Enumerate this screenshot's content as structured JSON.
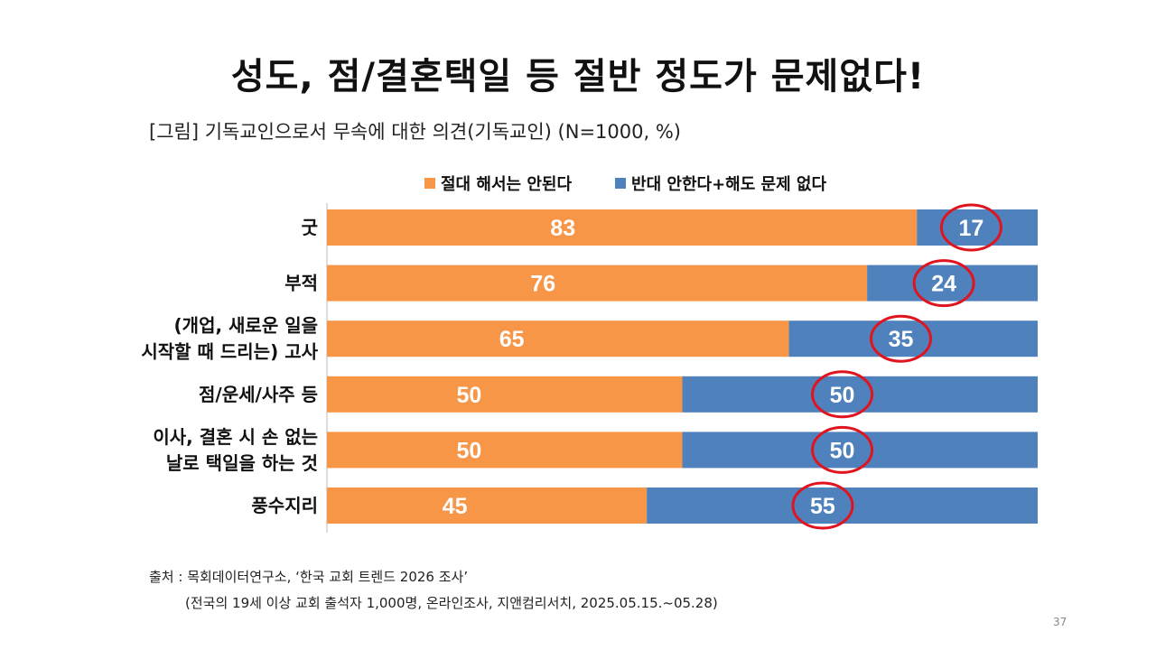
{
  "title": "성도, 점/결혼택일 등 절반 정도가 문제없다!",
  "subtitle": "[그림] 기독교인으로서 무속에 대한 의견(기독교인) (N=1000, %)",
  "source_line1": "출처 : 목회데이터연구소, ‘한국 교회 트렌드 2026 조사’",
  "source_line2": "(전국의 19세 이상 교회 출석자 1,000명, 온라인조사, 지앤컴리서치, 2025.05.15.~05.28)",
  "page_number": "37",
  "colors": {
    "orange": "#F79646",
    "blue": "#4F81BD",
    "circle": "#E0141E"
  },
  "chart_data": {
    "type": "bar",
    "orientation": "horizontal-stacked-100",
    "categories": [
      [
        "굿"
      ],
      [
        "부적"
      ],
      [
        "(개업, 새로운 일을",
        "시작할 때 드리는) 고사"
      ],
      [
        "점/운세/사주 등"
      ],
      [
        "이사, 결혼 시 손 없는",
        "날로 택일을 하는 것"
      ],
      [
        "풍수지리"
      ]
    ],
    "series": [
      {
        "name": "절대 해서는 안된다",
        "color": "#F79646",
        "values": [
          83,
          76,
          65,
          50,
          50,
          45
        ]
      },
      {
        "name": "반대 안한다+해도 문제 없다",
        "color": "#4F81BD",
        "values": [
          17,
          24,
          35,
          50,
          50,
          55
        ]
      }
    ],
    "xlim": [
      0,
      100
    ],
    "legend": "top",
    "annotations": "red circles around second-series labels"
  }
}
